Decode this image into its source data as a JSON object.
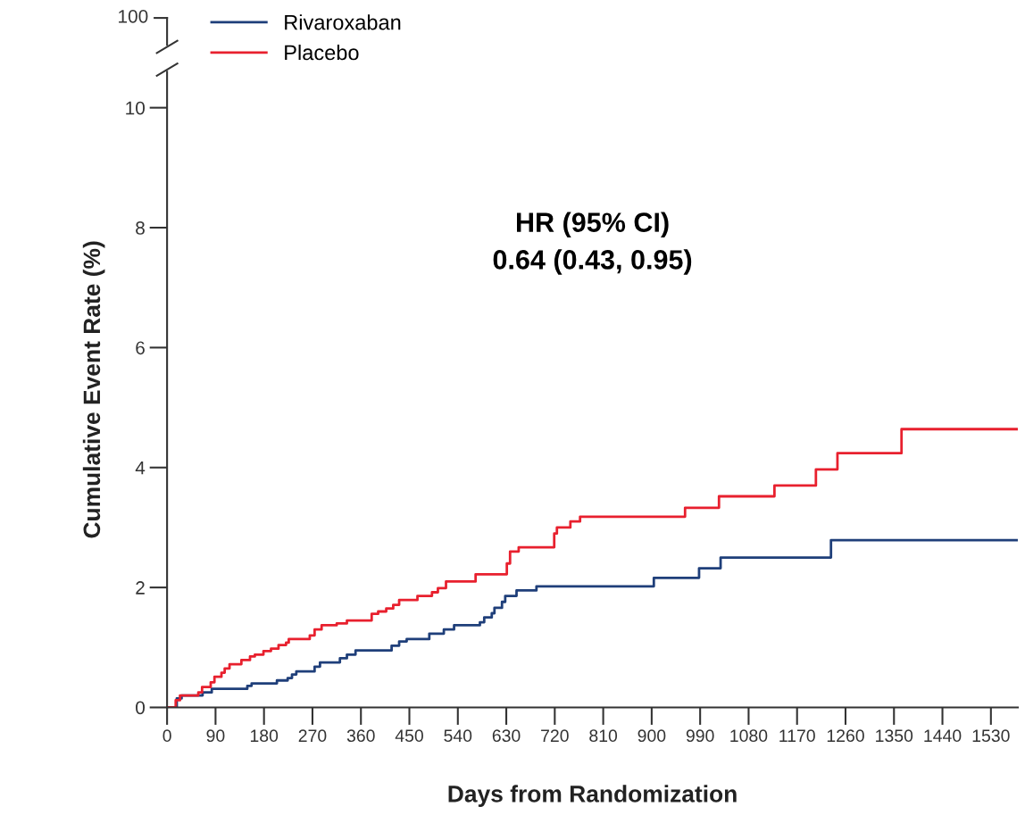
{
  "chart_data": {
    "type": "step",
    "xlabel": "Days from Randomization",
    "ylabel": "Cumulative Event Rate (%)",
    "annotations": [
      "100",
      "HR (95% CI)\n0.64 (0.43, 0.95)"
    ],
    "xlim": [
      0,
      1580
    ],
    "xticks": [
      0,
      90,
      180,
      270,
      360,
      450,
      540,
      630,
      720,
      810,
      900,
      990,
      1080,
      1170,
      1260,
      1350,
      1440,
      1530
    ],
    "ylim": [
      0,
      10.6
    ],
    "yticks": [
      0,
      2,
      4,
      6,
      8,
      10
    ],
    "grid": false,
    "legend": "top left",
    "line_style": "solid",
    "marker": "none",
    "series": [
      {
        "name": "Rivaroxaban",
        "color": "#1f3f7a",
        "x": [
          0,
          18,
          27,
          66,
          83,
          149,
          157,
          204,
          224,
          232,
          240,
          274,
          284,
          321,
          334,
          350,
          417,
          431,
          445,
          487,
          514,
          533,
          581,
          589,
          603,
          608,
          622,
          628,
          649,
          686,
          904,
          988,
          1028,
          1233,
          1580
        ],
        "values": [
          0,
          0.15,
          0.2,
          0.25,
          0.31,
          0.36,
          0.4,
          0.45,
          0.49,
          0.55,
          0.6,
          0.68,
          0.75,
          0.82,
          0.88,
          0.95,
          1.03,
          1.1,
          1.14,
          1.23,
          1.3,
          1.37,
          1.42,
          1.5,
          1.57,
          1.66,
          1.76,
          1.86,
          1.95,
          2.02,
          2.16,
          2.32,
          2.5,
          2.79,
          2.79
        ]
      },
      {
        "name": "Placebo",
        "color": "#e8202e",
        "x": [
          0,
          16,
          24,
          58,
          65,
          81,
          88,
          101,
          107,
          116,
          138,
          154,
          163,
          179,
          193,
          207,
          221,
          226,
          265,
          274,
          287,
          315,
          334,
          380,
          392,
          407,
          420,
          431,
          465,
          492,
          503,
          518,
          573,
          631,
          637,
          653,
          719,
          724,
          749,
          767,
          962,
          1025,
          1128,
          1205,
          1245,
          1364,
          1580
        ],
        "values": [
          0,
          0.12,
          0.2,
          0.25,
          0.34,
          0.42,
          0.51,
          0.58,
          0.65,
          0.72,
          0.79,
          0.85,
          0.88,
          0.94,
          0.98,
          1.04,
          1.08,
          1.14,
          1.2,
          1.3,
          1.37,
          1.4,
          1.45,
          1.56,
          1.6,
          1.65,
          1.71,
          1.79,
          1.86,
          1.92,
          1.99,
          2.1,
          2.22,
          2.4,
          2.6,
          2.67,
          2.9,
          3.0,
          3.1,
          3.18,
          3.33,
          3.52,
          3.7,
          3.97,
          4.24,
          4.64,
          4.64
        ]
      }
    ]
  }
}
